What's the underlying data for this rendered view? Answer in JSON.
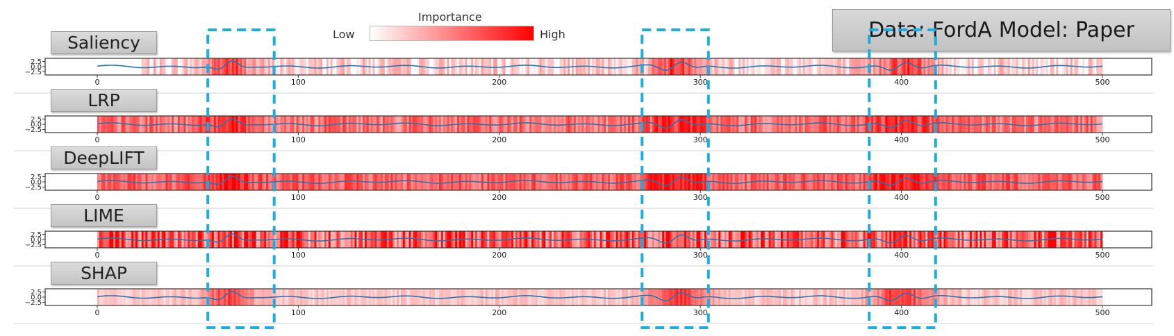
{
  "header": {
    "legend_title": "Importance",
    "legend_low": "Low",
    "legend_high": "High",
    "data_label": "Data:",
    "data_value": "FordA",
    "model_label": "Model:",
    "model_value": "Paper"
  },
  "colors": {
    "importance_low": "#ffffff",
    "importance_high": "#ff0000",
    "series_line": "#1f77b4",
    "highlight_box": "#1aaee0"
  },
  "highlight_regions_x": [
    [
      55,
      88
    ],
    [
      271,
      304
    ],
    [
      384,
      417
    ]
  ],
  "chart_data": {
    "type": "line",
    "description_of_marks": "each panel: blue time-series line over a red importance heat strip",
    "x_range": [
      0,
      500
    ],
    "x_ticks": [
      0,
      100,
      200,
      300,
      400,
      500
    ],
    "y_range": [
      -4,
      4
    ],
    "y_ticks": [
      "2.5",
      "0.0",
      "−2.5"
    ],
    "y_tick_values": [
      2.5,
      0.0,
      -2.5
    ],
    "series_shape": {
      "baseline_freq": 0.17,
      "bursts": [
        {
          "center": 65,
          "width": 8,
          "amp": 2.2,
          "freq": 0.38
        },
        {
          "center": 288,
          "width": 10,
          "amp": 2.5,
          "freq": 0.33
        },
        {
          "center": 400,
          "width": 10,
          "amp": 2.5,
          "freq": 0.32
        }
      ]
    },
    "panels": [
      {
        "name": "Saliency",
        "importance_base": 0.18,
        "importance_noise": 0.22,
        "strip_start": 22,
        "focus_gain": 0.75
      },
      {
        "name": "LRP",
        "importance_base": 0.55,
        "importance_noise": 0.25,
        "strip_start": 0,
        "focus_gain": 0.45
      },
      {
        "name": "DeepLIFT",
        "importance_base": 0.62,
        "importance_noise": 0.22,
        "strip_start": 0,
        "focus_gain": 0.4
      },
      {
        "name": "LIME",
        "importance_base": 0.65,
        "importance_noise": 0.45,
        "strip_start": 0,
        "focus_gain": 0.1
      },
      {
        "name": "SHAP",
        "importance_base": 0.22,
        "importance_noise": 0.12,
        "strip_start": 0,
        "focus_gain": 0.7
      }
    ]
  }
}
